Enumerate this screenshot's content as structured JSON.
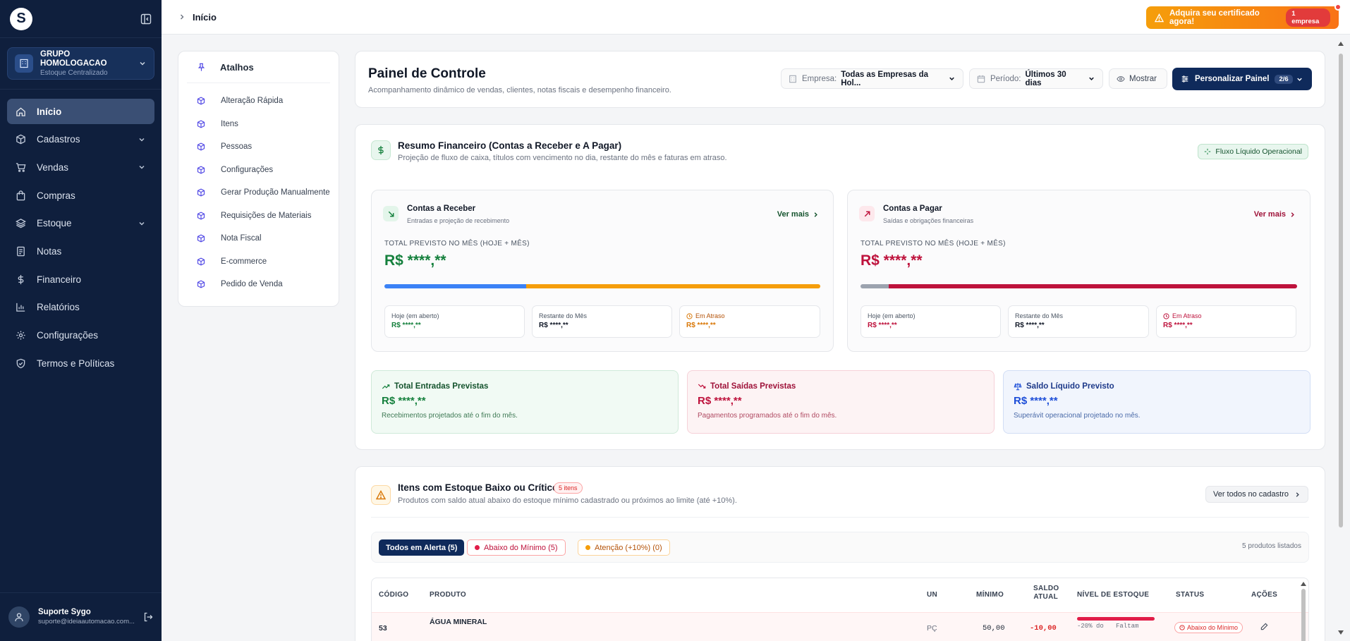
{
  "sidebar": {
    "org_name": "GRUPO HOMOLOGACAO",
    "org_sub": "Estoque Centralizado",
    "nav": [
      {
        "label": "Início",
        "icon": "home-icon"
      },
      {
        "label": "Cadastros",
        "icon": "cube-icon"
      },
      {
        "label": "Vendas",
        "icon": "cart-icon"
      },
      {
        "label": "Compras",
        "icon": "bag-icon"
      },
      {
        "label": "Estoque",
        "icon": "layers-icon"
      },
      {
        "label": "Notas",
        "icon": "document-icon"
      },
      {
        "label": "Financeiro",
        "icon": "dollar-icon"
      },
      {
        "label": "Relatórios",
        "icon": "bar-chart-icon"
      },
      {
        "label": "Configurações",
        "icon": "gear-icon"
      },
      {
        "label": "Termos e Políticas",
        "icon": "shield-icon"
      }
    ],
    "user_name": "Suporte Sygo",
    "user_email": "suporte@ideiaautomacao.com..."
  },
  "topbar": {
    "breadcrumb": "Início",
    "cert_label": "Adquira seu certificado agora!",
    "cert_count": "1 empresa"
  },
  "shortcuts": {
    "title": "Atalhos",
    "items": [
      "Alteração Rápida",
      "Itens",
      "Pessoas",
      "Configurações",
      "Gerar Produção Manualmente",
      "Requisições de Materiais",
      "Nota Fiscal",
      "E-commerce",
      "Pedido de Venda"
    ]
  },
  "panel": {
    "title": "Painel de Controle",
    "subtitle": "Acompanhamento dinâmico de vendas, clientes, notas fiscais e desempenho financeiro.",
    "empresa_label": "Empresa:",
    "empresa_value": "Todas as Empresas da Hol...",
    "periodo_label": "Período:",
    "periodo_value": "Últimos 30 dias",
    "mostrar": "Mostrar",
    "personalizar": "Personalizar Painel",
    "personalizar_count": "2/6"
  },
  "finance": {
    "title": "Resumo Financeiro (Contas a Receber e A Pagar)",
    "subtitle": "Projeção de fluxo de caixa, títulos com vencimento no dia, restante do mês e faturas em atraso.",
    "flux_badge": "Fluxo Líquido Operacional",
    "receber": {
      "title": "Contas a Receber",
      "subtitle": "Entradas e projeção de recebimento",
      "ver_mais": "Ver mais",
      "total_label": "TOTAL PREVISTO NO MÊS (HOJE + MÊS)",
      "total_value": "R$ ****,**",
      "bar_split": 0.325,
      "hoje_label": "Hoje (em aberto)",
      "hoje_value": "R$ ****,**",
      "restante_label": "Restante do Mês",
      "restante_value": "R$ ****,**",
      "atraso_label": "Em Atraso",
      "atraso_value": "R$ ****,**"
    },
    "pagar": {
      "title": "Contas a Pagar",
      "subtitle": "Saídas e obrigações financeiras",
      "ver_mais": "Ver mais",
      "total_label": "TOTAL PREVISTO NO MÊS (HOJE + MÊS)",
      "total_value": "R$ ****,**",
      "bar_split": 0.065,
      "hoje_label": "Hoje (em aberto)",
      "hoje_value": "R$ ****,**",
      "restante_label": "Restante do Mês",
      "restante_value": "R$ ****,**",
      "atraso_label": "Em Atraso",
      "atraso_value": "R$ ****,**"
    },
    "entradas": {
      "title": "Total Entradas Previstas",
      "value": "R$ ****,**",
      "note": "Recebimentos projetados até o fim do mês."
    },
    "saidas": {
      "title": "Total Saídas Previstas",
      "value": "R$ ****,**",
      "note": "Pagamentos programados até o fim do mês."
    },
    "saldo": {
      "title": "Saldo Líquido Previsto",
      "value": "R$ ****,**",
      "note": "Superávit operacional projetado no mês."
    }
  },
  "stock": {
    "title": "Itens com Estoque Baixo ou Crítico",
    "badge": "5 itens",
    "subtitle": "Produtos com saldo atual abaixo do estoque mínimo cadastrado ou próximos ao limite (até +10%).",
    "ver_todos": "Ver todos no cadastro",
    "tabs": [
      "Todos em Alerta (5)",
      "Abaixo do Mínimo (5)",
      "Atenção (+10%) (0)"
    ],
    "listed": "5 produtos listados",
    "columns": {
      "codigo": "CÓDIGO",
      "produto": "PRODUTO",
      "un": "UN",
      "minimo": "MÍNIMO",
      "saldo1": "SALDO",
      "saldo2": "ATUAL",
      "nivel": "NÍVEL DE ESTOQUE",
      "status": "STATUS",
      "acoes": "AÇÕES"
    },
    "row": {
      "codigo": "53",
      "produto": "ÁGUA MINERAL",
      "un": "PÇ",
      "minimo": "50,00",
      "saldo": "-10,00",
      "nivel_a": "-20% do",
      "nivel_b": "Faltam",
      "status": "Abaixo do Mínimo"
    }
  },
  "colors": {
    "navy": "#0f1f3d",
    "green": "#15803d",
    "red": "#be123c",
    "blue": "#1d4ed8",
    "orange": "#f59e0b"
  }
}
